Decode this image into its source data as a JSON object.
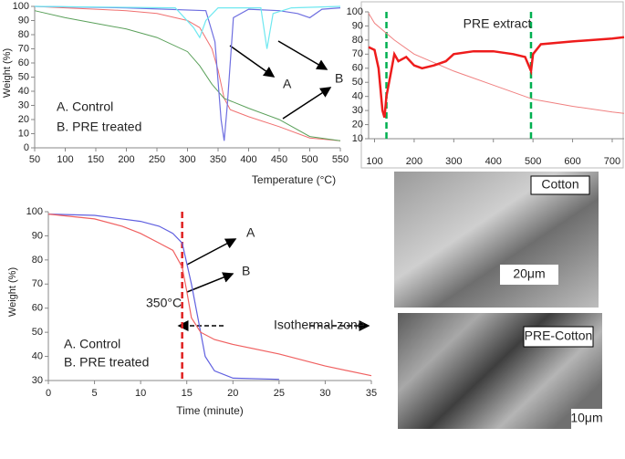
{
  "chart_data": [
    {
      "type": "line",
      "x_label": "Temperature (°C)",
      "y_label": "Weight (%)",
      "xlim": [
        50,
        550
      ],
      "xticks": [
        50,
        100,
        150,
        200,
        250,
        300,
        350,
        400,
        450,
        500,
        550
      ],
      "ylim": [
        0,
        100
      ],
      "yticks": [
        0,
        10,
        20,
        30,
        40,
        50,
        60,
        70,
        80,
        90,
        100
      ],
      "series": [
        {
          "color": "#f07070",
          "x": [
            50,
            100,
            150,
            200,
            250,
            300,
            320,
            340,
            350,
            360,
            370,
            400,
            450,
            500,
            550
          ],
          "values": [
            100,
            99,
            98,
            97,
            95,
            90,
            85,
            70,
            55,
            35,
            27,
            22,
            15,
            7,
            5
          ]
        },
        {
          "color": "#5aa05a",
          "x": [
            50,
            100,
            150,
            200,
            250,
            300,
            320,
            340,
            360,
            400,
            450,
            500,
            550
          ],
          "values": [
            97,
            92,
            88,
            84,
            78,
            68,
            58,
            45,
            35,
            28,
            20,
            8,
            5
          ]
        },
        {
          "color": "#6f6fe0",
          "x": [
            50,
            200,
            330,
            345,
            355,
            360,
            365,
            375,
            400,
            450,
            480,
            500,
            520,
            550
          ],
          "values": [
            100,
            99,
            97,
            75,
            20,
            5,
            30,
            92,
            98,
            97,
            95,
            92,
            98,
            99
          ]
        },
        {
          "color": "#6fe8f0",
          "x": [
            50,
            280,
            310,
            320,
            330,
            350,
            420,
            430,
            440,
            470,
            550
          ],
          "values": [
            100,
            99,
            85,
            78,
            90,
            99,
            99,
            70,
            95,
            99,
            100
          ]
        }
      ],
      "annotations": [
        "A.  Control",
        "B.   PRE treated",
        "A",
        "B"
      ]
    },
    {
      "type": "line",
      "title": "PRE extract",
      "xlim": [
        85,
        730
      ],
      "xticks": [
        100,
        200,
        300,
        400,
        500,
        600,
        700
      ],
      "ylim": [
        10,
        100
      ],
      "yticks": [
        10,
        20,
        30,
        40,
        50,
        60,
        70,
        80,
        90,
        100
      ],
      "series": [
        {
          "color": "#f08080",
          "x": [
            85,
            100,
            150,
            200,
            300,
            400,
            500,
            600,
            700,
            730
          ],
          "values": [
            99,
            92,
            80,
            70,
            58,
            48,
            38,
            33,
            29,
            28
          ]
        },
        {
          "color": "#ee1c1c",
          "x": [
            85,
            100,
            110,
            120,
            125,
            130,
            140,
            150,
            160,
            180,
            200,
            220,
            250,
            280,
            300,
            350,
            400,
            450,
            480,
            495,
            500,
            520,
            600,
            700,
            730
          ],
          "values": [
            75,
            73,
            60,
            30,
            25,
            40,
            55,
            70,
            65,
            68,
            62,
            60,
            62,
            65,
            70,
            72,
            72,
            70,
            68,
            58,
            70,
            77,
            79,
            81,
            82
          ]
        }
      ],
      "vlines": [
        {
          "x": 130,
          "color": "#00b050"
        },
        {
          "x": 495,
          "color": "#00b050"
        }
      ]
    },
    {
      "type": "line",
      "x_label": "Time (minute)",
      "y_label": "Weight (%)",
      "xlim": [
        0,
        35
      ],
      "xticks": [
        0,
        5,
        10,
        15,
        20,
        25,
        30,
        35
      ],
      "ylim": [
        30,
        100
      ],
      "yticks": [
        30,
        40,
        50,
        60,
        70,
        80,
        90,
        100
      ],
      "series": [
        {
          "color": "#6060e0",
          "x": [
            0,
            5,
            10,
            12,
            13.5,
            14.5,
            15.5,
            16.5,
            17,
            18,
            20,
            25
          ],
          "values": [
            99,
            98.5,
            96,
            94,
            91,
            87,
            70,
            50,
            40,
            34,
            31,
            30.5
          ]
        },
        {
          "color": "#f06060",
          "x": [
            0,
            5,
            8,
            10,
            12,
            13.5,
            14.5,
            15,
            15.5,
            16.5,
            18,
            20,
            25,
            30,
            35
          ],
          "values": [
            99,
            97,
            94,
            91,
            87,
            84,
            77,
            67,
            56,
            50,
            47,
            45,
            41,
            36,
            32
          ]
        }
      ],
      "vlines": [
        {
          "x": 14.5,
          "color": "#e02020"
        }
      ],
      "annotations": [
        "A",
        "B",
        "350°C",
        "Isothermal zone",
        "A.   Control",
        "B.    PRE treated"
      ]
    }
  ],
  "images": [
    {
      "label": "Cotton",
      "scale": "20μm"
    },
    {
      "label": "PRE-Cotton",
      "scale": "10μm"
    }
  ]
}
